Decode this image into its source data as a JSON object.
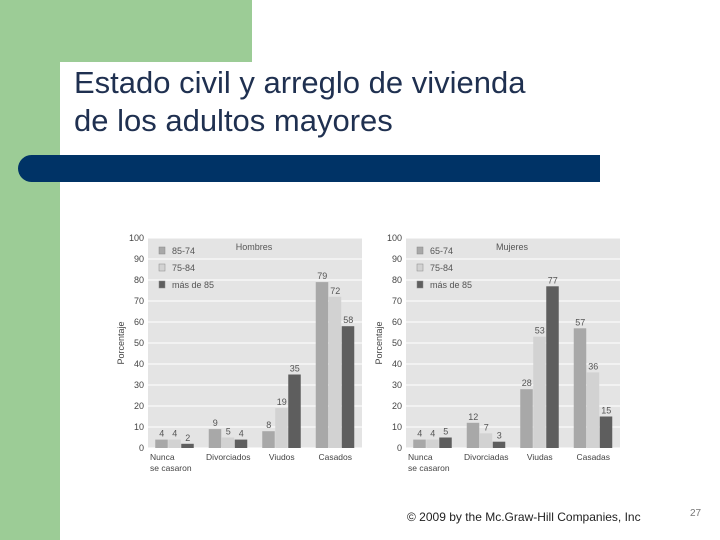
{
  "slide": {
    "title_line1": "Estado civil y arreglo de vivienda",
    "title_line2": "de los adultos mayores",
    "footer": "© 2009 by the Mc.Graw-Hill Companies, Inc",
    "page_number": "27"
  },
  "colors": {
    "band_green": "#9ccc96",
    "rule_navy": "#003366",
    "series": [
      "#a8a8a8",
      "#d2d2d2",
      "#5e5e5e"
    ]
  },
  "chart_data": [
    {
      "type": "bar",
      "title": "Hombres",
      "ylabel": "Porcentaje",
      "xlabel": "",
      "ylim": [
        0,
        100
      ],
      "yticks": [
        0,
        10,
        20,
        30,
        40,
        50,
        60,
        70,
        80,
        90,
        100
      ],
      "categories": [
        [
          "Nunca",
          "se casaron"
        ],
        [
          "Divorciados"
        ],
        [
          "Viudos"
        ],
        [
          "Casados"
        ]
      ],
      "series": [
        {
          "name": "85-74",
          "values": [
            4,
            9,
            8,
            79
          ]
        },
        {
          "name": "75-84",
          "values": [
            4,
            5,
            19,
            72
          ]
        },
        {
          "name": "más de 85",
          "values": [
            2,
            4,
            35,
            58
          ]
        }
      ],
      "grid": true,
      "legend": "top-left"
    },
    {
      "type": "bar",
      "title": "Mujeres",
      "ylabel": "Porcentaje",
      "xlabel": "",
      "ylim": [
        0,
        100
      ],
      "yticks": [
        0,
        10,
        20,
        30,
        40,
        50,
        60,
        70,
        80,
        90,
        100
      ],
      "categories": [
        [
          "Nunca",
          "se casaron"
        ],
        [
          "Divorciadas"
        ],
        [
          "Viudas"
        ],
        [
          "Casadas"
        ]
      ],
      "series": [
        {
          "name": "65-74",
          "values": [
            4,
            12,
            28,
            57
          ]
        },
        {
          "name": "75-84",
          "values": [
            4,
            7,
            53,
            36
          ]
        },
        {
          "name": "más de 85",
          "values": [
            5,
            3,
            77,
            15
          ]
        }
      ],
      "grid": true,
      "legend": "top-left"
    }
  ]
}
